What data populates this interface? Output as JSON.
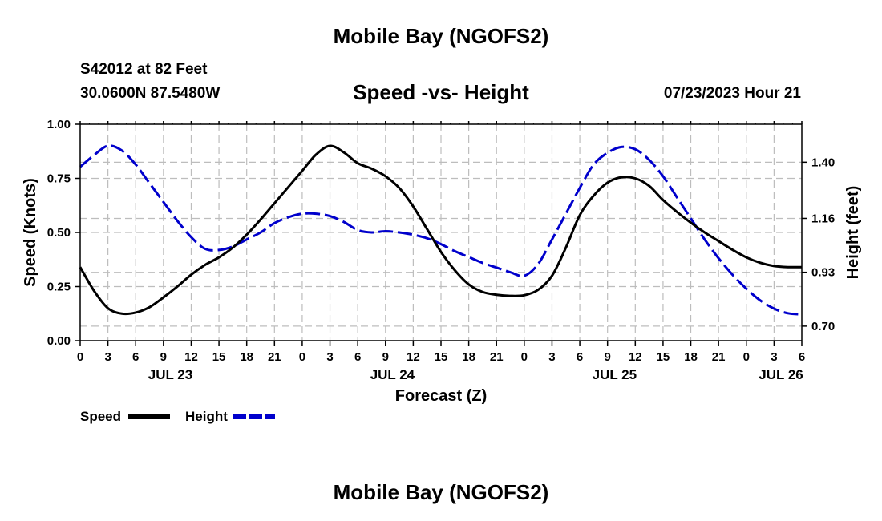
{
  "header": {
    "title": "Mobile Bay (NGOFS2)",
    "station": "S42012 at 82 Feet",
    "coords": "30.0600N  87.5480W",
    "datetime": "07/23/2023 Hour 21"
  },
  "footer": {
    "title": "Mobile Bay (NGOFS2)"
  },
  "chart_data": {
    "type": "line",
    "title": "Speed -vs- Height",
    "xlabel": "Forecast (Z)",
    "ylabel": "Speed (Knots)",
    "y2label": "Height (feet)",
    "xlim": [
      0,
      78
    ],
    "ylim": [
      0,
      1.0
    ],
    "y2lim": [
      0.638,
      1.562
    ],
    "grid": true,
    "legend_position": "bottom-left",
    "x_ticks": [
      0,
      3,
      6,
      9,
      12,
      15,
      18,
      21,
      24,
      27,
      30,
      33,
      36,
      39,
      42,
      45,
      48,
      51,
      54,
      57,
      60,
      63,
      66,
      69,
      72,
      75,
      78
    ],
    "x_tick_labels": [
      "0",
      "3",
      "6",
      "9",
      "12",
      "15",
      "18",
      "21",
      "0",
      "3",
      "6",
      "9",
      "12",
      "15",
      "18",
      "21",
      "0",
      "3",
      "6",
      "9",
      "12",
      "15",
      "18",
      "21",
      "0",
      "3",
      "6"
    ],
    "date_labels": [
      {
        "x": 9.75,
        "label": "JUL 23"
      },
      {
        "x": 33.75,
        "label": "JUL 24"
      },
      {
        "x": 57.75,
        "label": "JUL 25"
      },
      {
        "x": 75.75,
        "label": "JUL 26"
      }
    ],
    "y_ticks": [
      0,
      0.25,
      0.5,
      0.75,
      1.0
    ],
    "y_tick_labels": [
      "0.00",
      "0.25",
      "0.50",
      "0.75",
      "1.00"
    ],
    "y2_ticks": [
      0.7,
      0.93,
      1.16,
      1.4
    ],
    "y2_tick_labels": [
      "0.70",
      "0.93",
      "1.16",
      "1.40"
    ],
    "series": [
      {
        "name": "Speed",
        "axis": "left",
        "color": "#000000",
        "dash": "solid",
        "x": [
          0,
          1.5,
          3,
          4.5,
          6,
          7.5,
          9,
          10.5,
          12,
          13.5,
          15,
          16.5,
          18,
          19.5,
          21,
          22.5,
          24,
          25.5,
          27,
          28.5,
          30,
          31.5,
          33,
          34.5,
          36,
          37.5,
          39,
          40.5,
          42,
          43.5,
          45,
          46.5,
          48,
          49.5,
          51,
          52.5,
          54,
          55.5,
          57,
          58.5,
          60,
          61.5,
          63,
          64.5,
          66,
          67.5,
          69,
          70.5,
          72,
          73.5,
          75,
          76.5,
          78
        ],
        "values": [
          0.34,
          0.23,
          0.15,
          0.125,
          0.13,
          0.155,
          0.2,
          0.25,
          0.305,
          0.35,
          0.385,
          0.43,
          0.49,
          0.56,
          0.635,
          0.71,
          0.785,
          0.86,
          0.9,
          0.87,
          0.82,
          0.795,
          0.76,
          0.705,
          0.62,
          0.515,
          0.41,
          0.325,
          0.26,
          0.225,
          0.212,
          0.207,
          0.21,
          0.235,
          0.3,
          0.43,
          0.58,
          0.67,
          0.73,
          0.755,
          0.75,
          0.715,
          0.65,
          0.595,
          0.545,
          0.5,
          0.46,
          0.42,
          0.385,
          0.36,
          0.345,
          0.34,
          0.34
        ]
      },
      {
        "name": "Height",
        "axis": "right",
        "color": "#0000cc",
        "dash": "dashed",
        "x": [
          0,
          1.5,
          3,
          4.5,
          6,
          7.5,
          9,
          10.5,
          12,
          13.5,
          15,
          16.5,
          18,
          19.5,
          21,
          22.5,
          24,
          25.5,
          27,
          28.5,
          30,
          31.5,
          33,
          34.5,
          36,
          37.5,
          39,
          40.5,
          42,
          43.5,
          45,
          46.5,
          48,
          49.5,
          51,
          52.5,
          54,
          55.5,
          57,
          58.5,
          60,
          61.5,
          63,
          64.5,
          66,
          67.5,
          69,
          70.5,
          72,
          73.5,
          75,
          76.5,
          78
        ],
        "values": [
          1.38,
          1.43,
          1.47,
          1.45,
          1.39,
          1.31,
          1.23,
          1.15,
          1.08,
          1.03,
          1.025,
          1.04,
          1.07,
          1.1,
          1.14,
          1.165,
          1.18,
          1.18,
          1.17,
          1.145,
          1.11,
          1.1,
          1.105,
          1.1,
          1.09,
          1.075,
          1.05,
          1.02,
          0.995,
          0.97,
          0.95,
          0.93,
          0.915,
          0.965,
          1.07,
          1.18,
          1.29,
          1.39,
          1.44,
          1.465,
          1.455,
          1.41,
          1.34,
          1.25,
          1.16,
          1.07,
          0.99,
          0.92,
          0.86,
          0.81,
          0.775,
          0.755,
          0.75
        ]
      }
    ]
  }
}
